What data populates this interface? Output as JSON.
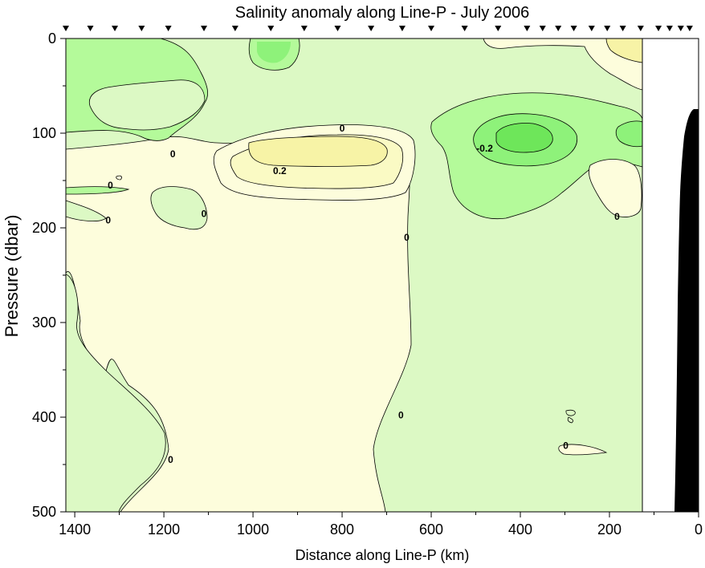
{
  "chart_data": {
    "type": "heatmap",
    "title": "Salinity anomaly along Line-P - July 2006",
    "xlabel": "Distance along Line-P (km)",
    "ylabel": "Pressure (dbar)",
    "xlim": [
      1420,
      0
    ],
    "ylim": [
      0,
      500
    ],
    "x_ticks": [
      1400,
      1200,
      1000,
      800,
      600,
      400,
      200,
      0
    ],
    "y_ticks": [
      0,
      100,
      200,
      300,
      400,
      500
    ],
    "x_tick_labels": [
      "1400",
      "1200",
      "1000",
      "800",
      "600",
      "400",
      "200",
      "0"
    ],
    "y_tick_labels": [
      "0",
      "100",
      "200",
      "300",
      "400",
      "500"
    ],
    "data_edge_km": 125,
    "station_km": [
      1420,
      1365,
      1310,
      1250,
      1190,
      1110,
      1040,
      960,
      885,
      810,
      735,
      665,
      600,
      525,
      450,
      385,
      350,
      315,
      280,
      240,
      205,
      170,
      130,
      90,
      65,
      40,
      20
    ],
    "contour_labels": [
      {
        "text": "0",
        "x": 800,
        "y": 95
      },
      {
        "text": "0",
        "x": 1180,
        "y": 122
      },
      {
        "text": "0",
        "x": 1320,
        "y": 155
      },
      {
        "text": "0",
        "x": 1110,
        "y": 185
      },
      {
        "text": "0",
        "x": 1325,
        "y": 192
      },
      {
        "text": "0.2",
        "x": 940,
        "y": 140
      },
      {
        "text": "-0.2",
        "x": 480,
        "y": 116
      },
      {
        "text": "0",
        "x": 655,
        "y": 210
      },
      {
        "text": "0",
        "x": 183,
        "y": 188
      },
      {
        "text": "0",
        "x": 668,
        "y": 398
      },
      {
        "text": "0",
        "x": 1185,
        "y": 445
      },
      {
        "text": "0",
        "x": 298,
        "y": 430
      }
    ],
    "colors": {
      "pos_0_0.1": "#fdfddc",
      "pos_0.1_0.2": "#fafac4",
      "pos_0.2_0.3": "#f7f3a6",
      "neg_0_0.1": "#dcf9c4",
      "neg_0.1_0.2": "#b4fa9a",
      "neg_0.2_0.3": "#8ef27a",
      "bathymetry": "#000000"
    }
  }
}
